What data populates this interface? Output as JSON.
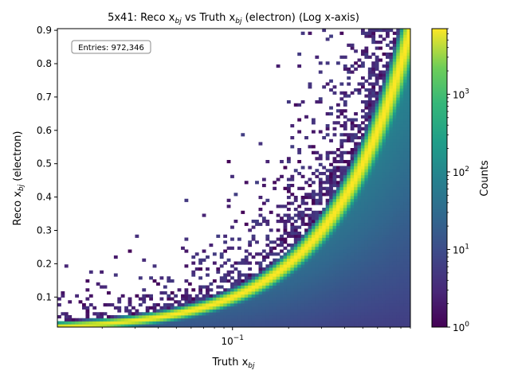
{
  "chart_data": {
    "type": "heatmap",
    "title": "5x41: Reco x_bj vs Truth x_bj (electron) (Log x-axis)",
    "title_parts": {
      "prefix": "5x41: Reco x",
      "sub1": "bj",
      "mid": " vs Truth x",
      "sub2": "bj",
      "suffix": " (electron) (Log x-axis)"
    },
    "xlabel_parts": {
      "main": "Truth x",
      "sub": "bj"
    },
    "ylabel_parts": {
      "main": "Reco x",
      "sub": "bj",
      "suffix": " (electron)"
    },
    "x_scale": "log",
    "x_range": [
      0.0115,
      0.9
    ],
    "y_range": [
      0.01,
      0.905
    ],
    "x_ticks": [
      {
        "value": 0.1,
        "base": "10",
        "exp": "−1"
      }
    ],
    "y_ticks": [
      {
        "value": 0.1,
        "label": "0.1"
      },
      {
        "value": 0.2,
        "label": "0.2"
      },
      {
        "value": 0.3,
        "label": "0.3"
      },
      {
        "value": 0.4,
        "label": "0.4"
      },
      {
        "value": 0.5,
        "label": "0.5"
      },
      {
        "value": 0.6,
        "label": "0.6"
      },
      {
        "value": 0.7,
        "label": "0.7"
      },
      {
        "value": 0.8,
        "label": "0.8"
      },
      {
        "value": 0.9,
        "label": "0.9"
      }
    ],
    "annotation": "Entries: 972,346",
    "entries": 972346,
    "colorbar": {
      "label": "Counts",
      "scale": "log",
      "range": [
        1,
        7000
      ],
      "colormap": "viridis",
      "ticks": [
        {
          "value": 1,
          "base": "10",
          "exp": "0"
        },
        {
          "value": 10,
          "base": "10",
          "exp": "1"
        },
        {
          "value": 100,
          "base": "10",
          "exp": "2"
        },
        {
          "value": 1000,
          "base": "10",
          "exp": "3"
        }
      ]
    },
    "density_model": {
      "relation": "reco approximately equals truth (diagonal ridge)",
      "peak_counts": 7000,
      "grid": {
        "nx": 100,
        "ny": 100
      }
    }
  }
}
